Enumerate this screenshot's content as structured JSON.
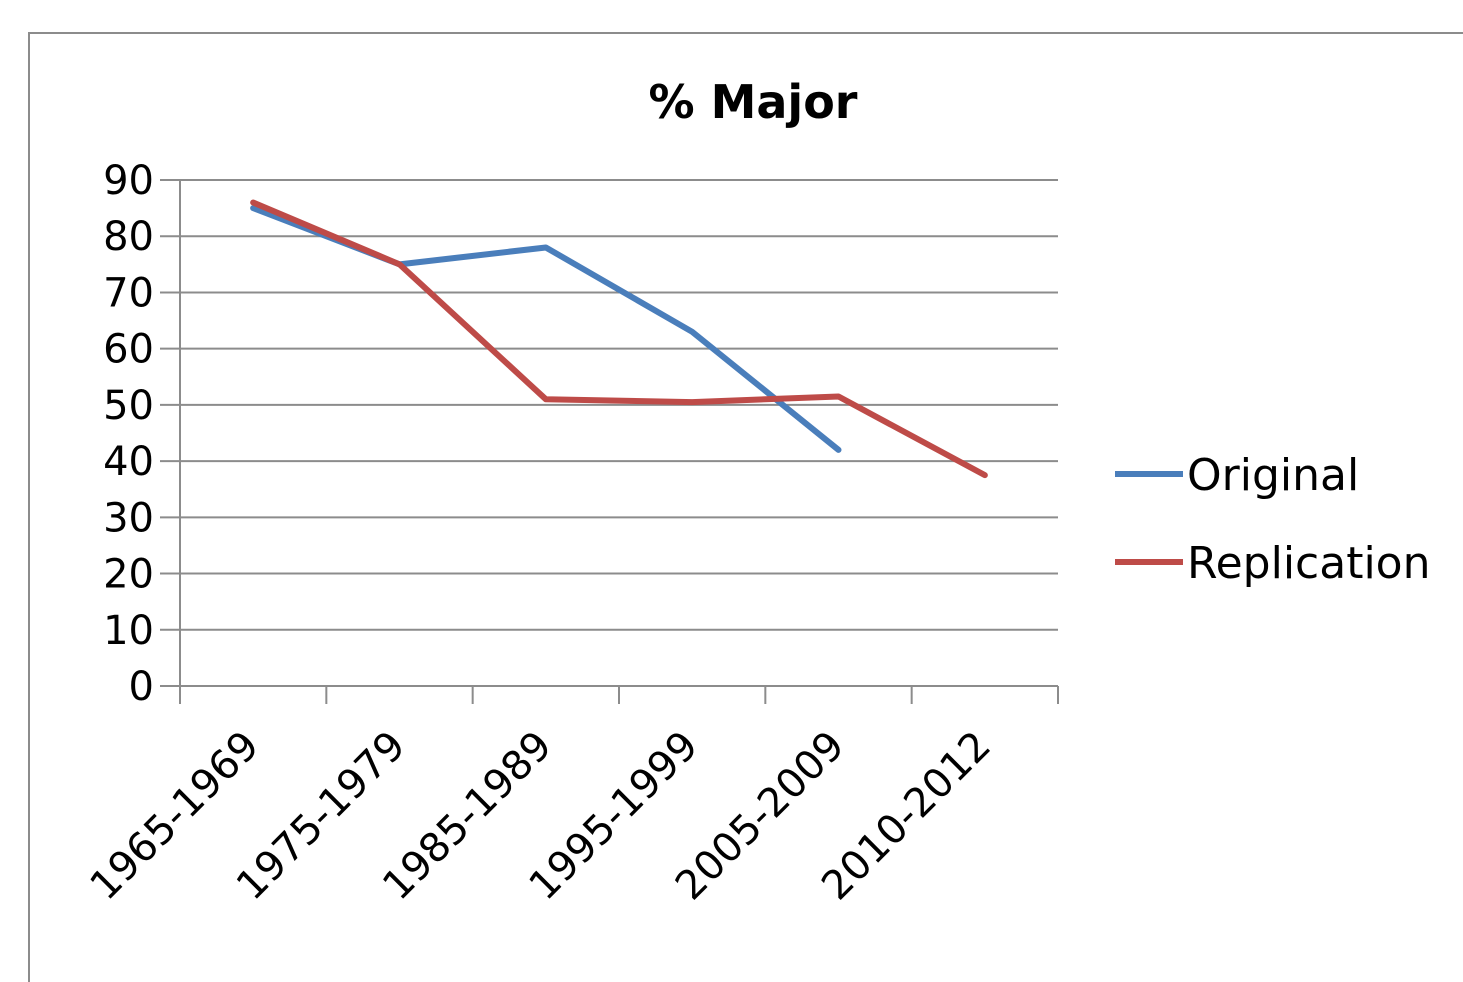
{
  "chart_data": {
    "type": "line",
    "title": "% Major",
    "xlabel": "",
    "ylabel": "",
    "categories": [
      "1965-1969",
      "1975-1979",
      "1985-1989",
      "1995-1999",
      "2005-2009",
      "2010-2012"
    ],
    "yticks": [
      0,
      10,
      20,
      30,
      40,
      50,
      60,
      70,
      80,
      90
    ],
    "ylim": [
      0,
      90
    ],
    "grid": true,
    "legend_position": "right",
    "series": [
      {
        "name": "Original",
        "color": "#4a7ebb",
        "values": [
          85,
          75,
          78,
          63,
          42,
          null
        ]
      },
      {
        "name": "Replication",
        "color": "#be4b48",
        "values": [
          86,
          75,
          51,
          50.5,
          51.5,
          37.5
        ]
      }
    ]
  }
}
